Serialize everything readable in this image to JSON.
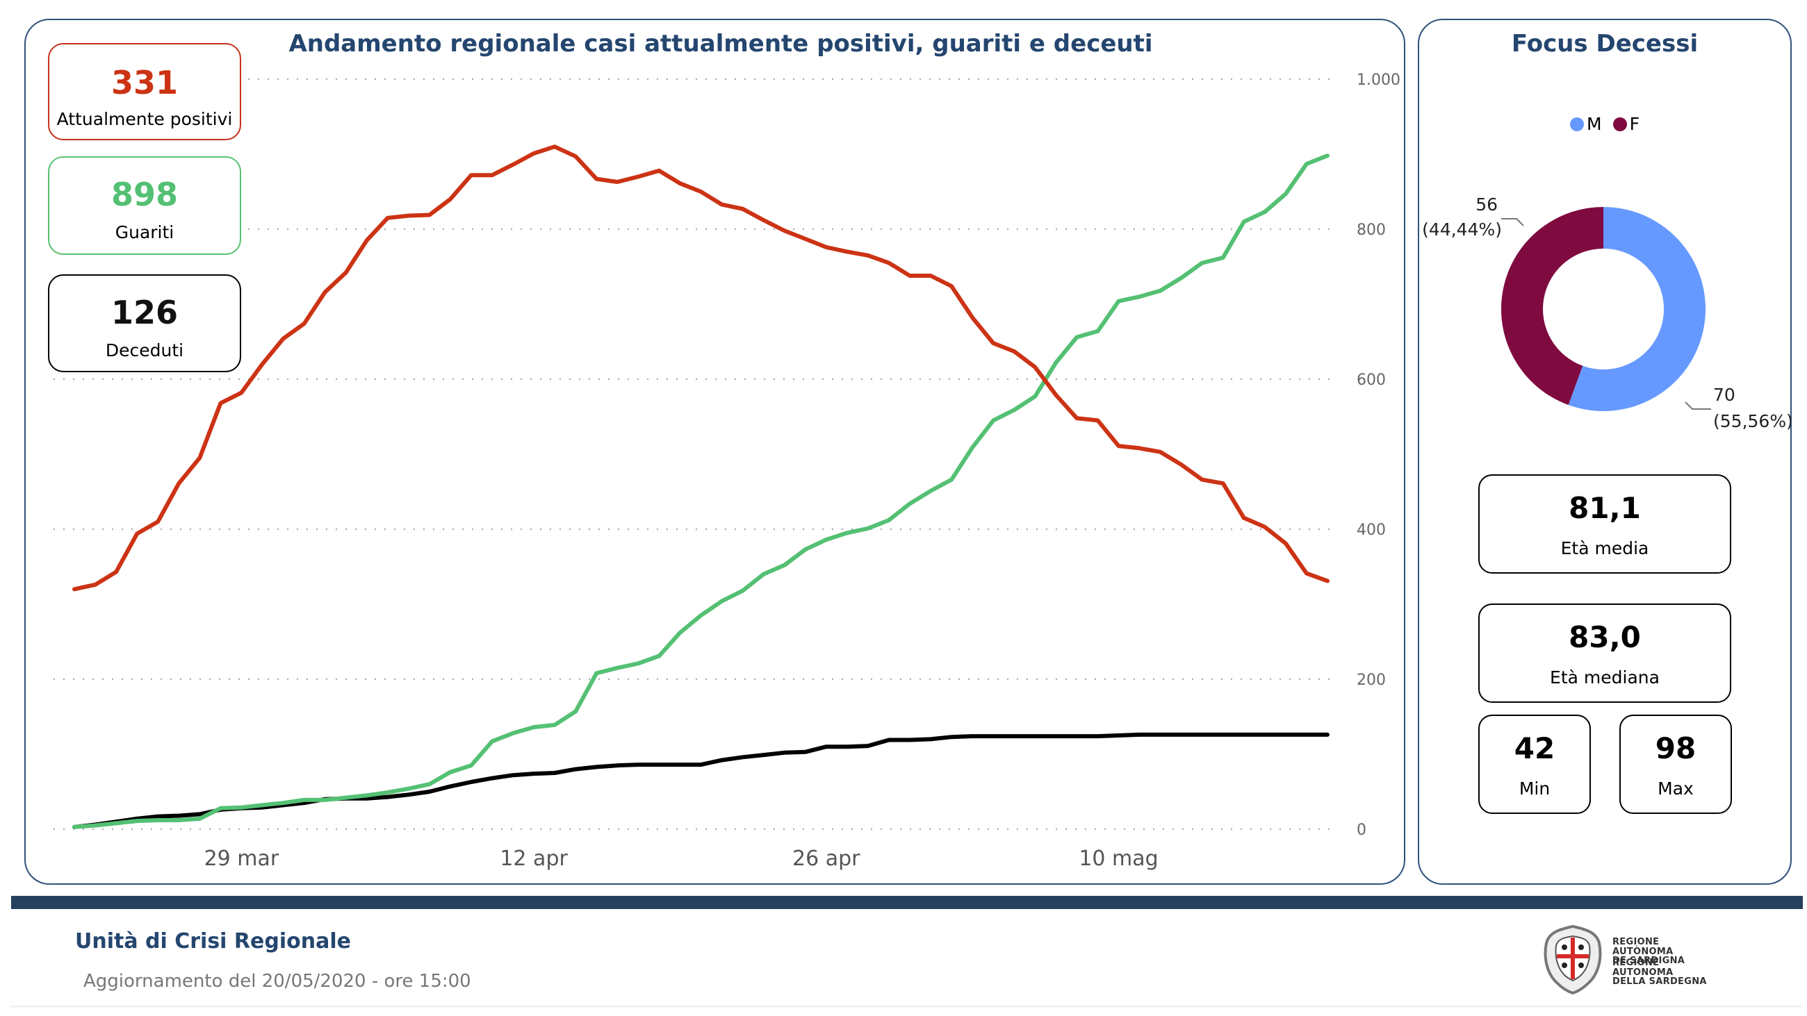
{
  "kpis": {
    "positivi": {
      "value": "331",
      "label": "Attualmente positivi"
    },
    "guariti": {
      "value": "898",
      "label": "Guariti"
    },
    "deceduti": {
      "value": "126",
      "label": "Deceduti"
    }
  },
  "focus": {
    "title": "Focus Decessi",
    "legend": [
      {
        "label": "M",
        "color": "#6699ff"
      },
      {
        "label": "F",
        "color": "#7f0a40"
      }
    ],
    "stats": {
      "mean": {
        "value": "81,1",
        "label": "Età media"
      },
      "median": {
        "value": "83,0",
        "label": "Età mediana"
      },
      "min": {
        "value": "42",
        "label": "Min"
      },
      "max": {
        "value": "98",
        "label": "Max"
      }
    }
  },
  "footer": {
    "title": "Unità di Crisi Regionale",
    "update": "Aggiornamento del 20/05/2020 - ore 15:00",
    "logo_lines": [
      "REGIONE AUTÒNOMA",
      "DE SARDIGNA",
      "REGIONE AUTONOMA",
      "DELLA SARDEGNA"
    ]
  },
  "colors": {
    "positivi": "#cc3314",
    "guariti": "#54c073",
    "deceduti": "#000000",
    "panel_border": "#2f527a",
    "title": "#24466f"
  },
  "chart_data": [
    {
      "type": "line",
      "title": "Andamento regionale casi attualmente positivi, guariti e deceuti",
      "xlabel": "",
      "ylabel": "",
      "x_start": "2020-03-21",
      "x_end": "2020-05-20",
      "x_tick_labels": [
        "29 mar",
        "12 apr",
        "26 apr",
        "10 mag"
      ],
      "x_tick_index": [
        8,
        22,
        36,
        50
      ],
      "ylim": [
        0,
        1000
      ],
      "y_ticks": [
        0,
        200,
        400,
        600,
        800,
        1000
      ],
      "y_tick_labels": [
        "0",
        "200",
        "400",
        "600",
        "800",
        "1.000"
      ],
      "y_axis_side": "right",
      "grid": "horizontal-dotted",
      "series": [
        {
          "name": "Attualmente positivi",
          "color": "#cc3314",
          "values": [
            320,
            326,
            343,
            394,
            410,
            461,
            495,
            568,
            582,
            620,
            654,
            674,
            716,
            742,
            785,
            815,
            818,
            819,
            840,
            872,
            872,
            886,
            901,
            910,
            897,
            867,
            863,
            870,
            878,
            861,
            850,
            833,
            827,
            812,
            798,
            787,
            776,
            770,
            765,
            755,
            738,
            738,
            724,
            682,
            648,
            637,
            616,
            579,
            548,
            545,
            511,
            508,
            503,
            486,
            466,
            461,
            415,
            403,
            381,
            341,
            331
          ]
        },
        {
          "name": "Guariti",
          "color": "#54c073",
          "values": [
            3,
            5,
            8,
            11,
            12,
            12,
            14,
            28,
            29,
            32,
            35,
            39,
            39,
            42,
            45,
            49,
            54,
            60,
            76,
            85,
            117,
            128,
            136,
            139,
            157,
            208,
            215,
            221,
            231,
            262,
            285,
            304,
            318,
            340,
            352,
            373,
            386,
            395,
            401,
            412,
            434,
            451,
            466,
            509,
            545,
            559,
            577,
            622,
            656,
            664,
            704,
            710,
            718,
            735,
            755,
            762,
            810,
            823,
            847,
            887,
            898
          ]
        },
        {
          "name": "Deceduti",
          "color": "#000000",
          "values": [
            3,
            6,
            10,
            14,
            17,
            18,
            20,
            26,
            28,
            29,
            32,
            35,
            40,
            41,
            41,
            43,
            46,
            50,
            57,
            63,
            68,
            72,
            74,
            75,
            80,
            83,
            85,
            86,
            86,
            86,
            86,
            92,
            96,
            99,
            102,
            103,
            110,
            110,
            111,
            119,
            119,
            120,
            123,
            124,
            124,
            124,
            124,
            124,
            124,
            124,
            125,
            126,
            126,
            126,
            126,
            126,
            126,
            126,
            126,
            126,
            126
          ]
        }
      ]
    },
    {
      "type": "pie",
      "title": "Focus Decessi",
      "variant": "donut",
      "legend_position": "top-center",
      "slices": [
        {
          "label": "M",
          "value": 70,
          "percent": "55,56%",
          "color": "#6699ff"
        },
        {
          "label": "F",
          "value": 56,
          "percent": "44,44%",
          "color": "#7f0a40"
        }
      ]
    }
  ]
}
